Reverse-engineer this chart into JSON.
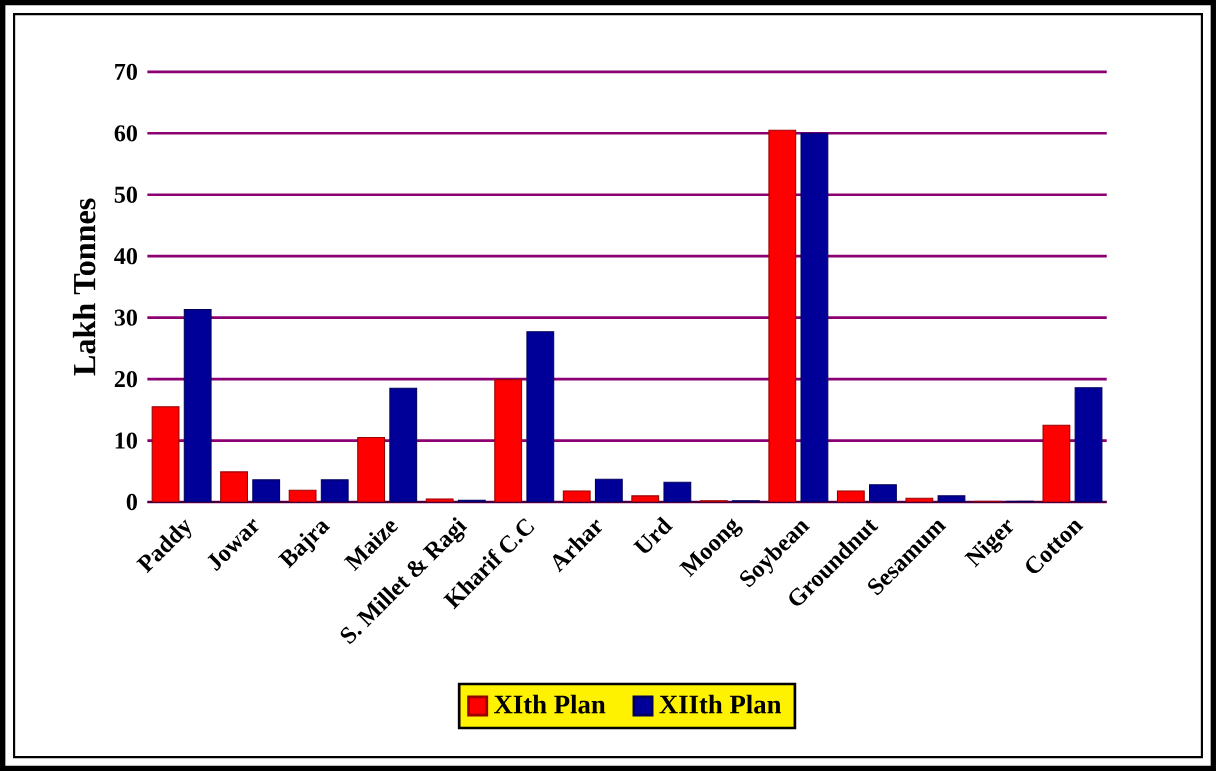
{
  "chart_data": {
    "type": "bar",
    "ylabel": "Lakh Tonnes",
    "categories": [
      "Paddy",
      "Jowar",
      "Bajra",
      "Maize",
      "S. Millet & Ragi",
      "Kharif C.C",
      "Arhar",
      "Urd",
      "Moong",
      "Soybean",
      "Groundnut",
      "Sesamum",
      "Niger",
      "Cotton"
    ],
    "series": [
      {
        "name": "XIth Plan",
        "color": "#ff0000",
        "values": [
          15.5,
          4.9,
          1.9,
          10.5,
          0.5,
          19.9,
          1.8,
          1.0,
          0.2,
          60.5,
          1.8,
          0.6,
          0.1,
          12.5
        ]
      },
      {
        "name": "XIIth Plan",
        "color": "#000099",
        "values": [
          31.3,
          3.6,
          3.6,
          18.5,
          0.3,
          27.7,
          3.7,
          3.2,
          0.2,
          60.0,
          2.8,
          1.0,
          0.1,
          18.6
        ]
      }
    ],
    "ylim": [
      0,
      70
    ],
    "yticks": [
      0,
      10,
      20,
      30,
      40,
      50,
      60,
      70
    ],
    "grid": "y",
    "legend": "bottom"
  }
}
